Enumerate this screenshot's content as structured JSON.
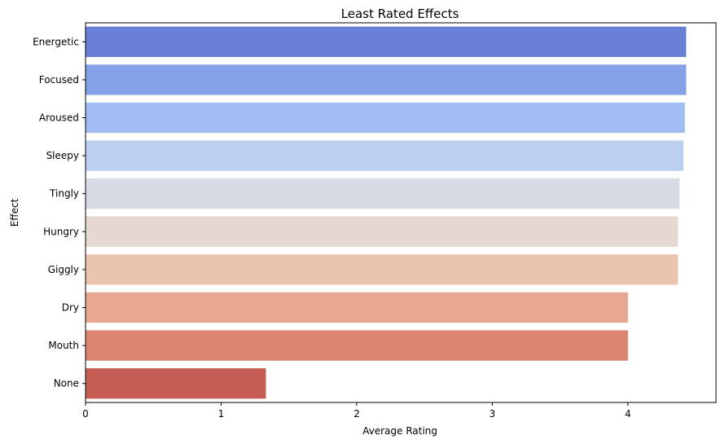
{
  "chart_data": {
    "type": "bar",
    "orientation": "horizontal",
    "title": "Least Rated Effects",
    "xlabel": "Average Rating",
    "ylabel": "Effect",
    "categories": [
      "Energetic",
      "Focused",
      "Aroused",
      "Sleepy",
      "Tingly",
      "Hungry",
      "Giggly",
      "Dry",
      "Mouth",
      "None"
    ],
    "values": [
      4.43,
      4.43,
      4.42,
      4.41,
      4.38,
      4.37,
      4.37,
      4.0,
      4.0,
      1.33
    ],
    "xlim": [
      0,
      4.65
    ],
    "xticks": [
      0,
      1,
      2,
      3,
      4
    ],
    "grid": false,
    "legend": "none",
    "colors": [
      "#6a7fd6",
      "#84a1e7",
      "#a2bcf3",
      "#bcd0f1",
      "#d6dbe6",
      "#e5d8d0",
      "#ebc4b0",
      "#e7a790",
      "#db8571",
      "#c45e52"
    ]
  }
}
